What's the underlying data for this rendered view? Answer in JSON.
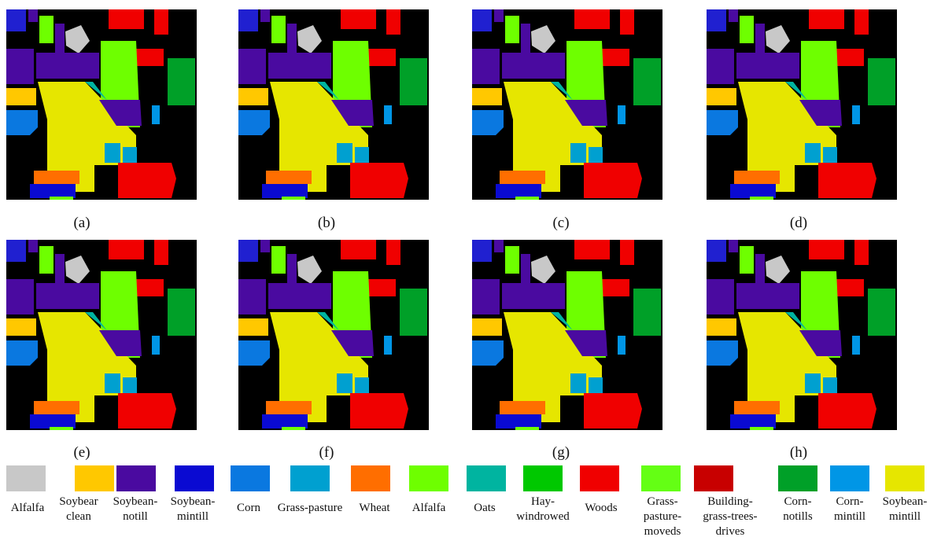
{
  "panels": [
    {
      "label": "(a)"
    },
    {
      "label": "(b)"
    },
    {
      "label": "(c)"
    },
    {
      "label": "(d)"
    },
    {
      "label": "(e)"
    },
    {
      "label": "(f)"
    },
    {
      "label": "(g)"
    },
    {
      "label": "(h)"
    }
  ],
  "legend": [
    {
      "color": "#c8c8c8",
      "lines": [
        "Alfalfa"
      ]
    },
    {
      "color": "#ffc800",
      "lines": [
        "Soybear",
        "clean"
      ]
    },
    {
      "color": "#4a0aa0",
      "lines": [
        "Soybean-",
        "notill"
      ]
    },
    {
      "color": "#0a0ad2",
      "lines": [
        "Soybean-",
        "mintill"
      ]
    },
    {
      "color": "#0a78e0",
      "lines": [
        "Corn"
      ]
    },
    {
      "color": "#00a0d0",
      "lines": [
        "Grass-pasture"
      ]
    },
    {
      "color": "#ff6e00",
      "lines": [
        "Wheat"
      ]
    },
    {
      "color": "#6eff00",
      "lines": [
        "Alfalfa"
      ]
    },
    {
      "color": "#00b4a0",
      "lines": [
        "Oats"
      ]
    },
    {
      "color": "#00c800",
      "lines": [
        "Hay-",
        "windrowed"
      ]
    },
    {
      "color": "#f00000",
      "lines": [
        "Woods"
      ]
    },
    {
      "color": "#64ff14",
      "lines": [
        "Grass-",
        "pasture-",
        "moveds"
      ]
    },
    {
      "color": "#c80000",
      "lines": [
        "Building-",
        "grass-trees-",
        "drives"
      ]
    },
    {
      "color": "#00a028",
      "lines": [
        "Corn-",
        "notills"
      ]
    },
    {
      "color": "#0096e6",
      "lines": [
        "Corn-",
        "mintill"
      ]
    },
    {
      "color": "#e6e600",
      "lines": [
        "Soybean-",
        "mintill"
      ]
    }
  ]
}
